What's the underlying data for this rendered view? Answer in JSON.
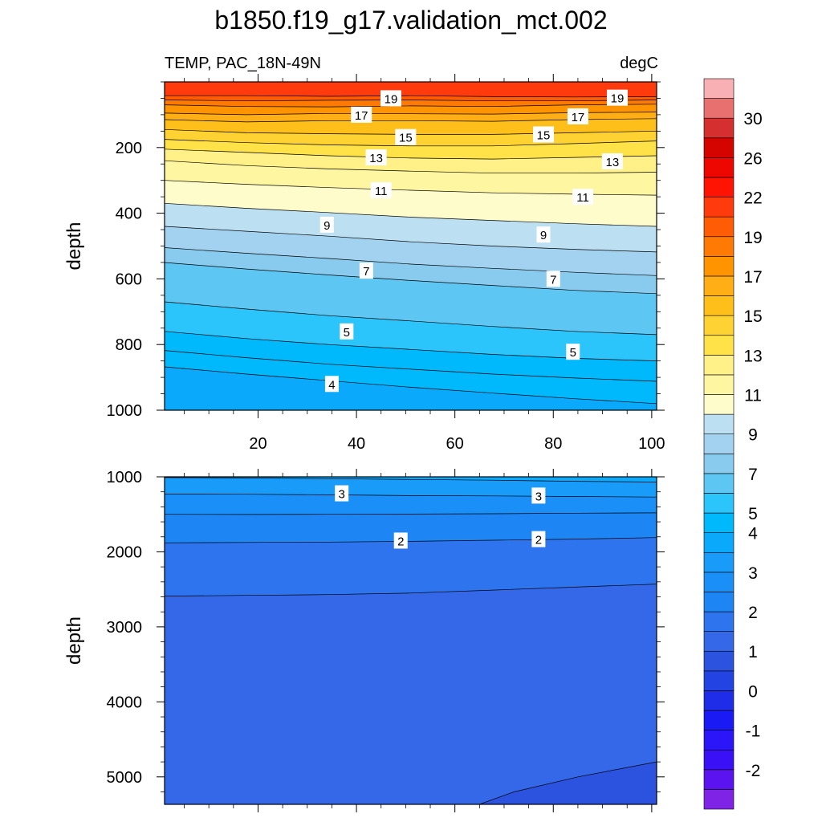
{
  "chart_data": {
    "type": "contour",
    "title": "b1850.f19_g17.validation_mct.002",
    "variable_label": "TEMP, PAC_18N-49N",
    "units_label": "degC",
    "xlim": [
      1,
      101
    ],
    "x_ticks": [
      20,
      40,
      60,
      80,
      100
    ],
    "colorbar": {
      "levels": [
        -3,
        -2.5,
        -2,
        -1.5,
        -1,
        -0.5,
        0,
        0.5,
        1,
        1.5,
        2,
        2.5,
        3,
        3.5,
        4,
        5,
        6,
        7,
        8,
        9,
        10,
        11,
        12,
        13,
        14,
        15,
        16,
        17,
        18,
        19,
        20,
        22,
        24,
        26,
        28,
        30,
        32
      ],
      "colors": [
        "#7f24e6",
        "#5b14f0",
        "#3a10f6",
        "#2a16f8",
        "#1a1af4",
        "#1f2de9",
        "#2344e3",
        "#2c52e0",
        "#3468e8",
        "#2d74ee",
        "#1e86f4",
        "#1a8ff8",
        "#199bfa",
        "#0aa9fb",
        "#00b8fc",
        "#2bc4fb",
        "#5ec6f2",
        "#89cbee",
        "#a3d2f0",
        "#bcdff2",
        "#fffccb",
        "#fff6a2",
        "#fff088",
        "#ffe248",
        "#ffd233",
        "#ffbf1a",
        "#ffae15",
        "#ff9400",
        "#ff7a05",
        "#ff5c05",
        "#ff3a0c",
        "#ff1404",
        "#ee0600",
        "#d50400",
        "#d62f30",
        "#e8706e",
        "#f9b0b4"
      ],
      "tick_labels": [
        "-2",
        "-1",
        "0",
        "1",
        "2",
        "3",
        "4",
        "5",
        "7",
        "9",
        "11",
        "13",
        "15",
        "17",
        "19",
        "22",
        "26",
        "30"
      ]
    },
    "panels": [
      {
        "id": "upper",
        "ylabel": "depth",
        "ylim": [
          0,
          1000
        ],
        "y_ticks": [
          200,
          400,
          600,
          800,
          1000
        ],
        "x_ticks_labeled": true,
        "contours": [
          {
            "level": 20,
            "y": [
              42,
              42,
              44,
              42,
              45,
              46,
              45
            ]
          },
          {
            "level": 19,
            "y": [
              55,
              58,
              56,
              55,
              58,
              58,
              55
            ]
          },
          {
            "level": 18,
            "y": [
              70,
              75,
              76,
              73,
              75,
              70,
              68
            ]
          },
          {
            "level": 17,
            "y": [
              95,
              100,
              96,
              97,
              98,
              94,
              92
            ]
          },
          {
            "level": 16,
            "y": [
              115,
              122,
              118,
              118,
              120,
              115,
              112
            ]
          },
          {
            "level": 15,
            "y": [
              145,
              155,
              158,
              160,
              160,
              155,
              150
            ]
          },
          {
            "level": 14,
            "y": [
              175,
              185,
              192,
              195,
              195,
              188,
              180
            ]
          },
          {
            "level": 13,
            "y": [
              205,
              215,
              225,
              232,
              235,
              230,
              225
            ]
          },
          {
            "level": 12,
            "y": [
              240,
              255,
              265,
              272,
              278,
              278,
              275
            ]
          },
          {
            "level": 11,
            "y": [
              300,
              312,
              322,
              330,
              338,
              342,
              345
            ]
          },
          {
            "level": 10,
            "y": [
              370,
              385,
              398,
              412,
              422,
              432,
              440
            ]
          },
          {
            "level": 9,
            "y": [
              440,
              455,
              470,
              487,
              500,
              510,
              518
            ]
          },
          {
            "level": 8,
            "y": [
              505,
              522,
              538,
              555,
              568,
              580,
              590
            ]
          },
          {
            "level": 7,
            "y": [
              550,
              570,
              588,
              605,
              620,
              635,
              645
            ]
          },
          {
            "level": 6,
            "y": [
              670,
              692,
              712,
              728,
              745,
              760,
              770
            ]
          },
          {
            "level": 5,
            "y": [
              760,
              782,
              800,
              815,
              830,
              842,
              850
            ]
          },
          {
            "level": 4.5,
            "y": [
              818,
              840,
              860,
              875,
              890,
              902,
              912
            ]
          },
          {
            "level": 4,
            "y": [
              868,
              890,
              910,
              930,
              948,
              965,
              980
            ]
          }
        ],
        "labels": [
          {
            "text": "19",
            "x": 47,
            "y": 50
          },
          {
            "text": "19",
            "x": 93,
            "y": 48
          },
          {
            "text": "17",
            "x": 41,
            "y": 100
          },
          {
            "text": "17",
            "x": 85,
            "y": 105
          },
          {
            "text": "15",
            "x": 50,
            "y": 168
          },
          {
            "text": "15",
            "x": 78,
            "y": 160
          },
          {
            "text": "13",
            "x": 44,
            "y": 230
          },
          {
            "text": "13",
            "x": 92,
            "y": 242
          },
          {
            "text": "11",
            "x": 45,
            "y": 330
          },
          {
            "text": "11",
            "x": 86,
            "y": 350
          },
          {
            "text": "9",
            "x": 34,
            "y": 435
          },
          {
            "text": "9",
            "x": 78,
            "y": 465
          },
          {
            "text": "7",
            "x": 42,
            "y": 575
          },
          {
            "text": "7",
            "x": 80,
            "y": 600
          },
          {
            "text": "5",
            "x": 38,
            "y": 760
          },
          {
            "text": "5",
            "x": 84,
            "y": 822
          },
          {
            "text": "4",
            "x": 35,
            "y": 920
          }
        ]
      },
      {
        "id": "lower",
        "ylabel": "depth",
        "ylim": [
          1000,
          5366
        ],
        "y_ticks": [
          1000,
          2000,
          3000,
          4000,
          5000
        ],
        "x_ticks_labeled": false,
        "contours": [
          {
            "level": 3.5,
            "y": [
              1010,
              1015,
              1025,
              1035,
              1045,
              1060,
              1070
            ]
          },
          {
            "level": 3,
            "y": [
              1230,
              1232,
              1240,
              1250,
              1255,
              1262,
              1270
            ]
          },
          {
            "level": 2.5,
            "y": [
              1500,
              1502,
              1500,
              1497,
              1492,
              1485,
              1480
            ]
          },
          {
            "level": 2,
            "y": [
              1880,
              1875,
              1870,
              1860,
              1845,
              1830,
              1810
            ]
          },
          {
            "level": 1.5,
            "y": [
              2590,
              2580,
              2570,
              2550,
              2510,
              2470,
              2430
            ]
          }
        ],
        "deep_region": {
          "level": 1,
          "boundary": [
            [
              65,
              5366
            ],
            [
              72,
              5200
            ],
            [
              85,
              5000
            ],
            [
              101,
              4800
            ]
          ]
        },
        "labels": [
          {
            "text": "3",
            "x": 37,
            "y": 1220
          },
          {
            "text": "3",
            "x": 77,
            "y": 1250
          },
          {
            "text": "2",
            "x": 49,
            "y": 1850
          },
          {
            "text": "2",
            "x": 77,
            "y": 1830
          }
        ]
      }
    ]
  }
}
